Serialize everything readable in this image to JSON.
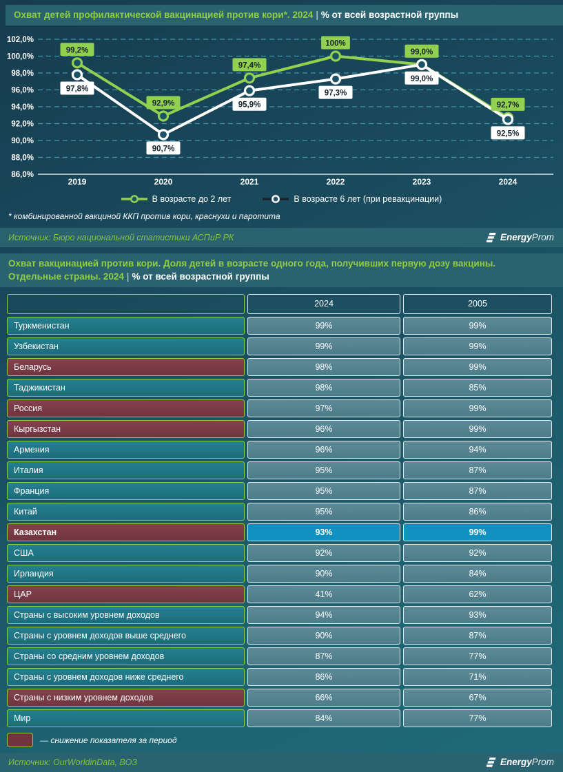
{
  "colors": {
    "accent_green": "#8fce3f",
    "series_green": "#92d050",
    "series_white": "#ffffff",
    "legend_dark_line": "#17242f",
    "band_teal": "#2a6270",
    "grid_dash": "#4396ab",
    "declined_maroon": "#71343f",
    "row_teal": "#1d6c7b",
    "value_cell": "#4d7c8a",
    "highlight_blue": "#1191c2",
    "header_cell": "#1c4f61",
    "label_text": "#15222b"
  },
  "header1": {
    "title": "Охват детей профилактической вакцинацией против кори*. 2024",
    "separator": "|",
    "subtitle": "% от всей возрастной группы"
  },
  "chart_data": [
    {
      "type": "line",
      "title": "Охват детей профилактической вакцинацией против кори*. 2024 | % от всей возрастной группы",
      "x": [
        "2019",
        "2020",
        "2021",
        "2022",
        "2023",
        "2024"
      ],
      "series": [
        {
          "name": "В возрасте до 2 лет",
          "color": "#92d050",
          "legend_line_color": "#92d050",
          "marker_ring": "#92d050",
          "label_pos": "above",
          "values": [
            99.2,
            92.9,
            97.4,
            100,
            99.0,
            92.7
          ],
          "labels": [
            "99,2%",
            "92,9%",
            "97,4%",
            "100%",
            "99,0%",
            "92,7%"
          ]
        },
        {
          "name": "В возрасте 6 лет (при ревакцинации)",
          "color": "#ffffff",
          "legend_line_color": "#17242f",
          "marker_ring": "#ffffff",
          "label_pos": "below",
          "values": [
            97.8,
            90.7,
            95.9,
            97.3,
            99.0,
            92.5
          ],
          "labels": [
            "97,8%",
            "90,7%",
            "95,9%",
            "97,3%",
            "99,0%",
            "92,5%"
          ]
        }
      ],
      "ylim": [
        86,
        102
      ],
      "yticks": [
        102,
        100,
        98,
        96,
        94,
        92,
        90,
        88,
        86
      ],
      "ytick_labels": [
        "102,0%",
        "100,0%",
        "98,0%",
        "96,0%",
        "94,0%",
        "92,0%",
        "90,0%",
        "88,0%",
        "86,0%"
      ],
      "grid": "horizontal-dashed",
      "legend_position": "bottom"
    },
    {
      "type": "table",
      "title": "Охват вакцинацией против кори. Доля детей в возрасте одного года, получивших первую дозу вакцины. Отдельные страны. 2024 | % от всей возрастной группы",
      "columns": [
        "",
        "2024",
        "2005"
      ],
      "rows": [
        {
          "country": "Туркменистан",
          "values": [
            "99%",
            "99%"
          ],
          "declined": false,
          "highlighted": false
        },
        {
          "country": "Узбекистан",
          "values": [
            "99%",
            "99%"
          ],
          "declined": false,
          "highlighted": false
        },
        {
          "country": "Беларусь",
          "values": [
            "98%",
            "99%"
          ],
          "declined": true,
          "highlighted": false
        },
        {
          "country": "Таджикистан",
          "values": [
            "98%",
            "85%"
          ],
          "declined": false,
          "highlighted": false
        },
        {
          "country": "Россия",
          "values": [
            "97%",
            "99%"
          ],
          "declined": true,
          "highlighted": false
        },
        {
          "country": "Кыргызстан",
          "values": [
            "96%",
            "99%"
          ],
          "declined": true,
          "highlighted": false
        },
        {
          "country": "Армения",
          "values": [
            "96%",
            "94%"
          ],
          "declined": false,
          "highlighted": false
        },
        {
          "country": "Италия",
          "values": [
            "95%",
            "87%"
          ],
          "declined": false,
          "highlighted": false
        },
        {
          "country": "Франция",
          "values": [
            "95%",
            "87%"
          ],
          "declined": false,
          "highlighted": false
        },
        {
          "country": "Китай",
          "values": [
            "95%",
            "86%"
          ],
          "declined": false,
          "highlighted": false
        },
        {
          "country": "Казахстан",
          "values": [
            "93%",
            "99%"
          ],
          "declined": true,
          "highlighted": true
        },
        {
          "country": "США",
          "values": [
            "92%",
            "92%"
          ],
          "declined": false,
          "highlighted": false
        },
        {
          "country": "Ирландия",
          "values": [
            "90%",
            "84%"
          ],
          "declined": false,
          "highlighted": false
        },
        {
          "country": "ЦАР",
          "values": [
            "41%",
            "62%"
          ],
          "declined": true,
          "highlighted": false
        },
        {
          "country": "Страны с высоким уровнем доходов",
          "values": [
            "94%",
            "93%"
          ],
          "declined": false,
          "highlighted": false
        },
        {
          "country": "Страны с уровнем доходов выше среднего",
          "values": [
            "90%",
            "87%"
          ],
          "declined": false,
          "highlighted": false
        },
        {
          "country": "Страны со средним уровнем доходов",
          "values": [
            "87%",
            "77%"
          ],
          "declined": false,
          "highlighted": false
        },
        {
          "country": "Страны с уровнем доходов ниже среднего",
          "values": [
            "86%",
            "71%"
          ],
          "declined": false,
          "highlighted": false
        },
        {
          "country": "Страны с низким уровнем доходов",
          "values": [
            "66%",
            "67%"
          ],
          "declined": true,
          "highlighted": false
        },
        {
          "country": "Мир",
          "values": [
            "84%",
            "77%"
          ],
          "declined": false,
          "highlighted": false
        }
      ]
    }
  ],
  "footnote": {
    "text": "* комбинированной вакциной ККП против кори, краснухи и паротита"
  },
  "source1": {
    "text": "Источник: Бюро национальной статистики АСПиР РК"
  },
  "logo": {
    "energy": "Energy",
    "prom": "Prom"
  },
  "header2": {
    "line1": "Охват вакцинацией против кори. Доля детей в возрасте одного года, получивших первую дозу вакцины.",
    "line2": "Отдельные страны. 2024",
    "separator": "|",
    "subtitle": "% от всей возрастной группы"
  },
  "note": {
    "text": "— снижение показателя за период"
  },
  "source2": {
    "text": "Источник: OurWorldinData, ВОЗ"
  }
}
